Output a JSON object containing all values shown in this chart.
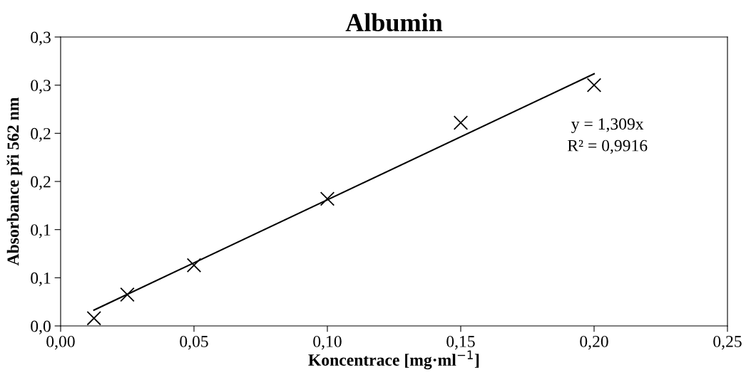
{
  "chart_data": {
    "type": "scatter",
    "title": "Albumin",
    "xlabel": "Koncentrace [mg·ml$^{−1}$]",
    "ylabel": "Absorbance při 562 nm",
    "annotations": [
      "y = 1,309x",
      "R² = 0,9916"
    ],
    "x": [
      0.0125,
      0.025,
      0.05,
      0.1,
      0.15,
      0.2
    ],
    "series": [
      {
        "color": "#000000",
        "marker": "cross",
        "values": [
          0.008,
          0.0325,
          0.063,
          0.132,
          0.211,
          0.25
        ]
      },
      {
        "type": "line",
        "color": "#000000",
        "marker": "none",
        "x": [
          0.0125,
          0.2
        ],
        "values": [
          0.0164,
          0.2618
        ]
      }
    ],
    "xlim": [
      0,
      0.25
    ],
    "xticks": [
      {
        "value": 0,
        "label": "0,00"
      },
      {
        "value": 0.05,
        "label": "0,05"
      },
      {
        "value": 0.1,
        "label": "0,10"
      },
      {
        "value": 0.15,
        "label": "0,15"
      },
      {
        "value": 0.2,
        "label": "0,20"
      },
      {
        "value": 0.25,
        "label": "0,25"
      }
    ],
    "ylim": [
      0,
      0.3
    ],
    "yticks": [
      {
        "value": 0,
        "label": "0,0"
      },
      {
        "value": 0.05,
        "label": "0,1"
      },
      {
        "value": 0.1,
        "label": "0,1"
      },
      {
        "value": 0.15,
        "label": "0,2"
      },
      {
        "value": 0.2,
        "label": "0,2"
      },
      {
        "value": 0.25,
        "label": "0,3"
      },
      {
        "value": 0.3,
        "label": "0,3"
      }
    ],
    "grid": false,
    "legend": false
  }
}
